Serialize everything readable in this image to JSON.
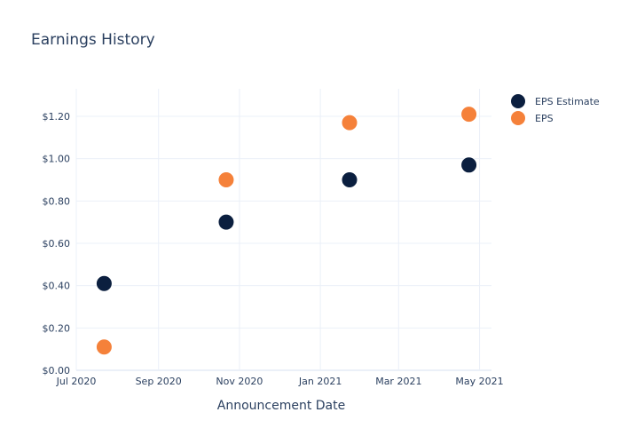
{
  "chart_data": {
    "type": "scatter",
    "title": "Earnings History",
    "xlabel": "Announcement Date",
    "ylabel": "",
    "x_ticks": [
      "Jul 2020",
      "Sep 2020",
      "Nov 2020",
      "Jan 2021",
      "Mar 2021",
      "May 2021"
    ],
    "y_ticks": [
      "$0.00",
      "$0.20",
      "$0.40",
      "$0.60",
      "$0.80",
      "$1.00",
      "$1.20"
    ],
    "xlim": [
      "2020-07-01",
      "2021-05-10"
    ],
    "ylim": [
      0,
      1.33
    ],
    "grid": true,
    "legend_position": "top-right",
    "series": [
      {
        "name": "EPS Estimate",
        "color": "#0b1f3f",
        "points": [
          {
            "x": "2020-07-22",
            "y": 0.41
          },
          {
            "x": "2020-10-22",
            "y": 0.7
          },
          {
            "x": "2021-01-23",
            "y": 0.9
          },
          {
            "x": "2021-04-23",
            "y": 0.97
          }
        ]
      },
      {
        "name": "EPS",
        "color": "#f5813a",
        "points": [
          {
            "x": "2020-07-22",
            "y": 0.11
          },
          {
            "x": "2020-10-22",
            "y": 0.9
          },
          {
            "x": "2021-01-23",
            "y": 1.17
          },
          {
            "x": "2021-04-23",
            "y": 1.21
          }
        ]
      }
    ]
  }
}
